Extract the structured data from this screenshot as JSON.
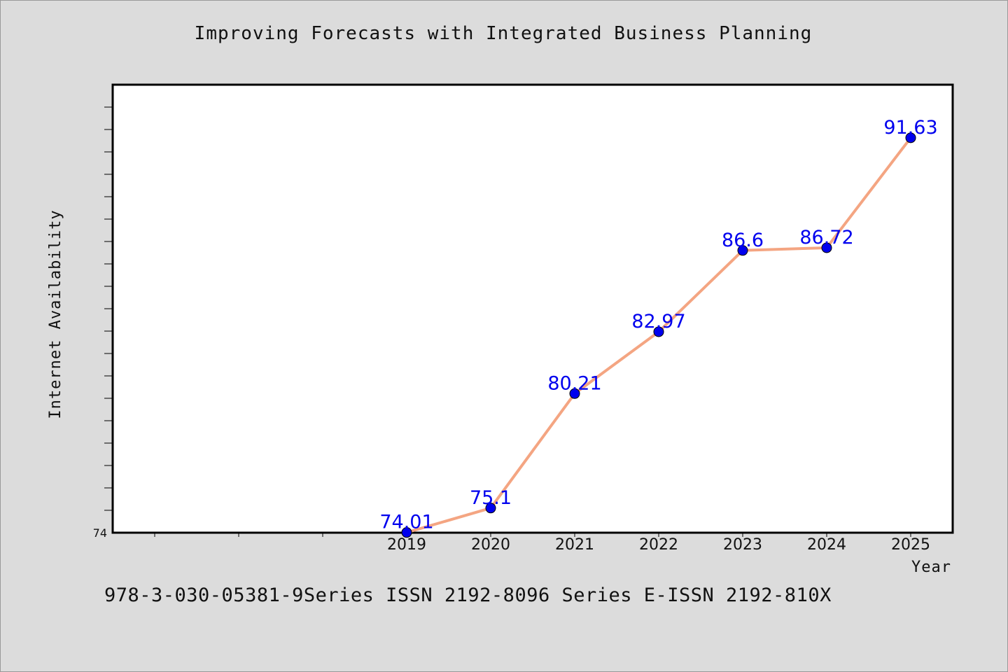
{
  "colors": {
    "background": "#dcdcdc",
    "plot_background": "#ffffff",
    "line": "#f4a582",
    "marker": "#0000ee",
    "data_label": "#0000ee"
  },
  "footer": {
    "text": "978-3-030-05381-9Series ISSN 2192-8096 Series E-ISSN 2192-810X"
  },
  "chart_data": {
    "type": "line",
    "title": "Improving Forecasts with Integrated Business Planning",
    "xlabel": "Year",
    "ylabel": "Internet Availability",
    "x": [
      2019,
      2020,
      2021,
      2022,
      2023,
      2024,
      2025
    ],
    "x_tick_labels": [
      "2019",
      "2020",
      "2021",
      "2022",
      "2023",
      "2024",
      "2025"
    ],
    "xlim": [
      2015.5,
      2025.5
    ],
    "y_tick_labels": [
      "74"
    ],
    "ylim": [
      74,
      94
    ],
    "grid": false,
    "legend": "none",
    "series": [
      {
        "values": [
          74.01,
          75.1,
          80.21,
          82.97,
          86.6,
          86.72,
          91.63
        ],
        "labels": [
          "74.01",
          "75.1",
          "80.21",
          "82.97",
          "86.6",
          "86.72",
          "91.63"
        ]
      }
    ]
  }
}
